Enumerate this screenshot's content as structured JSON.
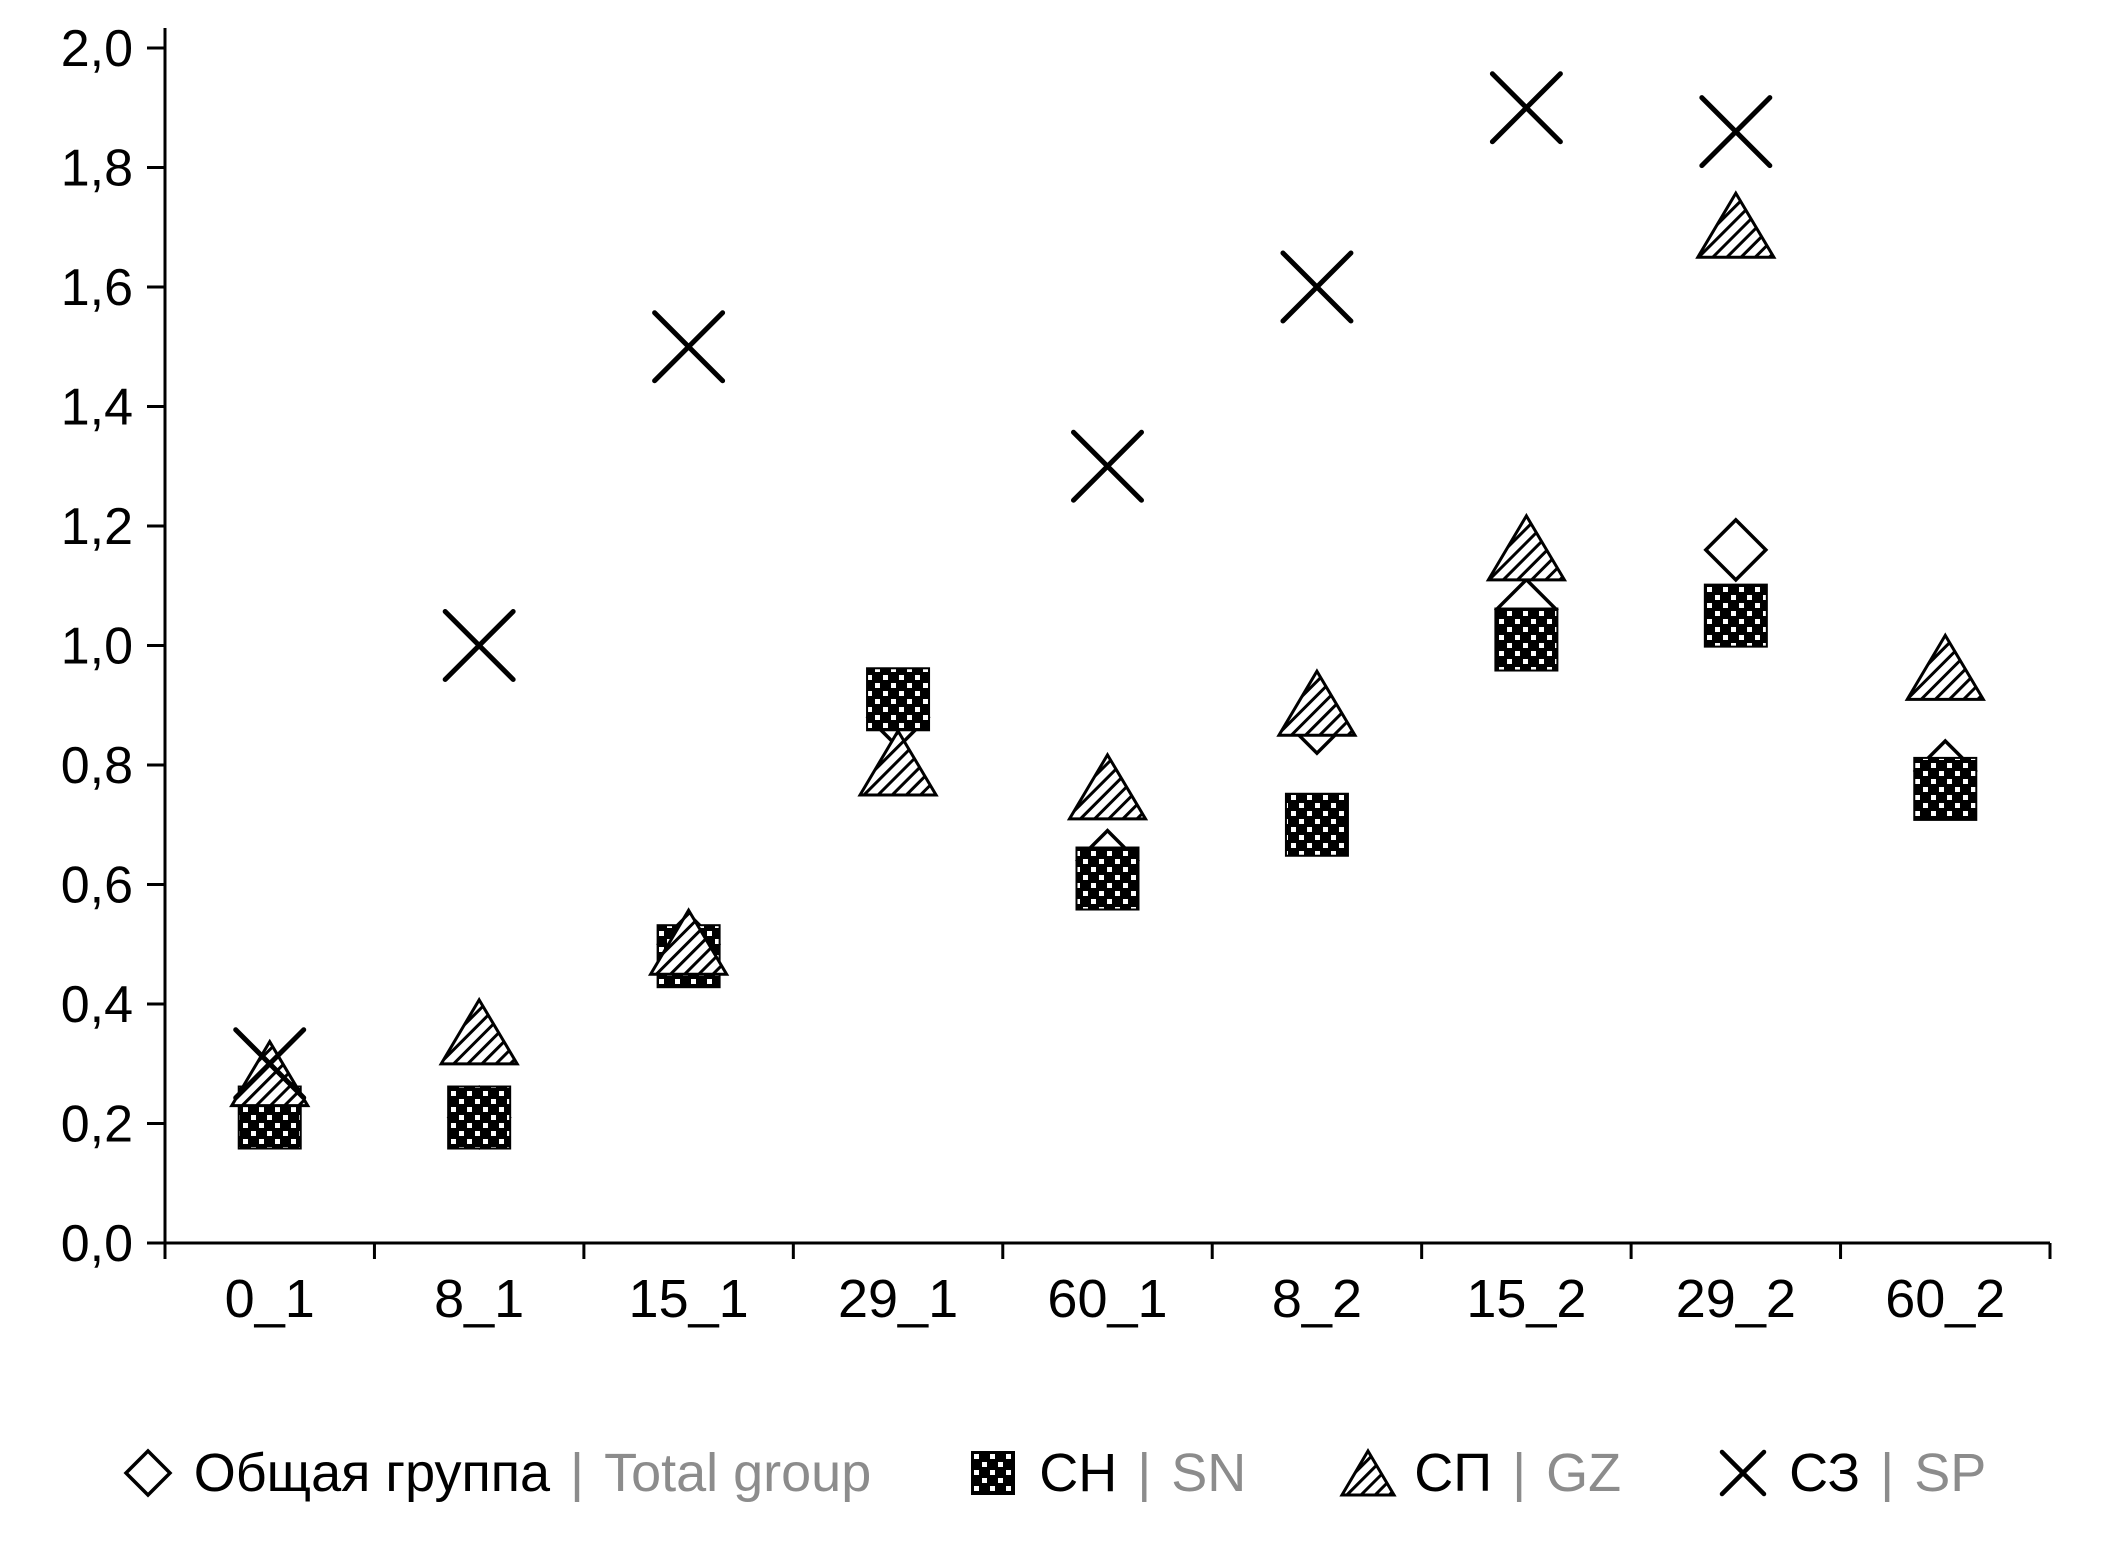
{
  "chart_data": {
    "type": "scatter",
    "title": "",
    "xlabel": "",
    "ylabel": "",
    "categories": [
      "0_1",
      "8_1",
      "15_1",
      "29_1",
      "60_1",
      "8_2",
      "15_2",
      "29_2",
      "60_2"
    ],
    "ylim": [
      0,
      2.0
    ],
    "y_tick_step": 0.2,
    "y_ticks": [
      "0,0",
      "0,2",
      "0,4",
      "0,6",
      "0,8",
      "1,0",
      "1,2",
      "1,4",
      "1,6",
      "1,8",
      "2,0"
    ],
    "decimal_separator": ",",
    "grid": false,
    "legend_position": "bottom",
    "series": [
      {
        "key": "total-group",
        "name": "Общая группа | Total group",
        "marker": "diamond",
        "values": [
          0.24,
          0.21,
          0.5,
          0.88,
          0.64,
          0.87,
          1.06,
          1.16,
          0.79
        ]
      },
      {
        "key": "sn",
        "name": "СН | SN",
        "marker": "square-dotted",
        "values": [
          0.21,
          0.21,
          0.48,
          0.91,
          0.61,
          0.7,
          1.01,
          1.05,
          0.76
        ]
      },
      {
        "key": "gz",
        "name": "СП | GZ",
        "marker": "triangle-hatched",
        "values": [
          0.27,
          0.34,
          0.49,
          0.79,
          0.75,
          0.89,
          1.15,
          1.69,
          0.95
        ]
      },
      {
        "key": "sp",
        "name": "СЗ | SP",
        "marker": "x",
        "values": [
          0.3,
          1.0,
          1.5,
          null,
          1.3,
          1.6,
          1.9,
          1.86,
          null
        ]
      }
    ]
  },
  "legend": {
    "separator": "|",
    "items": [
      {
        "key": "total-group",
        "marker": "diamond",
        "label_ru": "Общая группа",
        "label_en": "Total group"
      },
      {
        "key": "sn",
        "marker": "square-dotted",
        "label_ru": "СН",
        "label_en": "SN"
      },
      {
        "key": "gz",
        "marker": "triangle-hatched",
        "label_ru": "СП",
        "label_en": "GZ"
      },
      {
        "key": "sp",
        "marker": "x",
        "label_ru": "СЗ",
        "label_en": "SP"
      }
    ]
  },
  "colors": {
    "foreground": "#000000",
    "legend_translation": "#8c8c8c",
    "background": "#ffffff"
  }
}
